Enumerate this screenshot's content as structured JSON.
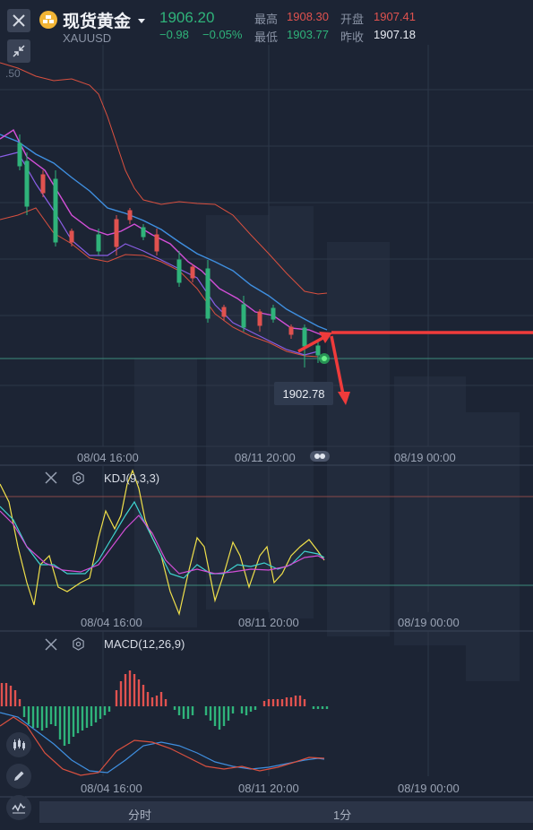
{
  "header": {
    "symbol_name": "现货黄金",
    "symbol_code": "XAUUSD",
    "last_price": "1906.20",
    "change": "−0.98",
    "change_pct": "−0.05%",
    "high_label": "最高",
    "high_value": "1908.30",
    "open_label": "开盘",
    "open_value": "1907.41",
    "low_label": "最低",
    "low_value": "1903.77",
    "prev_close_label": "昨收",
    "prev_close_value": "1907.18"
  },
  "main_chart": {
    "partial_price_tick": ".50",
    "price_tag": "1902.78",
    "time_ticks": [
      "08/04 16:00",
      "08/11 20:00",
      "08/19 00:00"
    ]
  },
  "kdj_panel": {
    "title": "KDJ(9,3,3)",
    "time_ticks": [
      "08/04 16:00",
      "08/11 20:00",
      "08/19 00:00"
    ]
  },
  "macd_panel": {
    "title": "MACD(12,26,9)",
    "time_ticks": [
      "08/04 16:00",
      "08/11 20:00",
      "08/19 00:00"
    ]
  },
  "bottom_tabs": [
    "分时",
    "1分"
  ],
  "colors": {
    "up": "#e0524f",
    "down": "#2fb37a",
    "background": "#1c2434",
    "ma_blue": "#3f8fe0",
    "ma_magenta": "#d34fd8",
    "ma_purple": "#8a5ee6",
    "boll_band": "#d9503f",
    "kdj_k": "#f0e04a",
    "kdj_d": "#3fd3d0",
    "kdj_j": "#d34fd8",
    "annotation_arrow": "#ef3b3b"
  },
  "icons": [
    "close-icon",
    "gold-coin-icon",
    "caret-down-icon",
    "collapse-arrows-icon",
    "settings-gear-icon",
    "candlestick-icon",
    "pencil-icon",
    "indicator-icon",
    "toggle-dots-icon"
  ]
}
